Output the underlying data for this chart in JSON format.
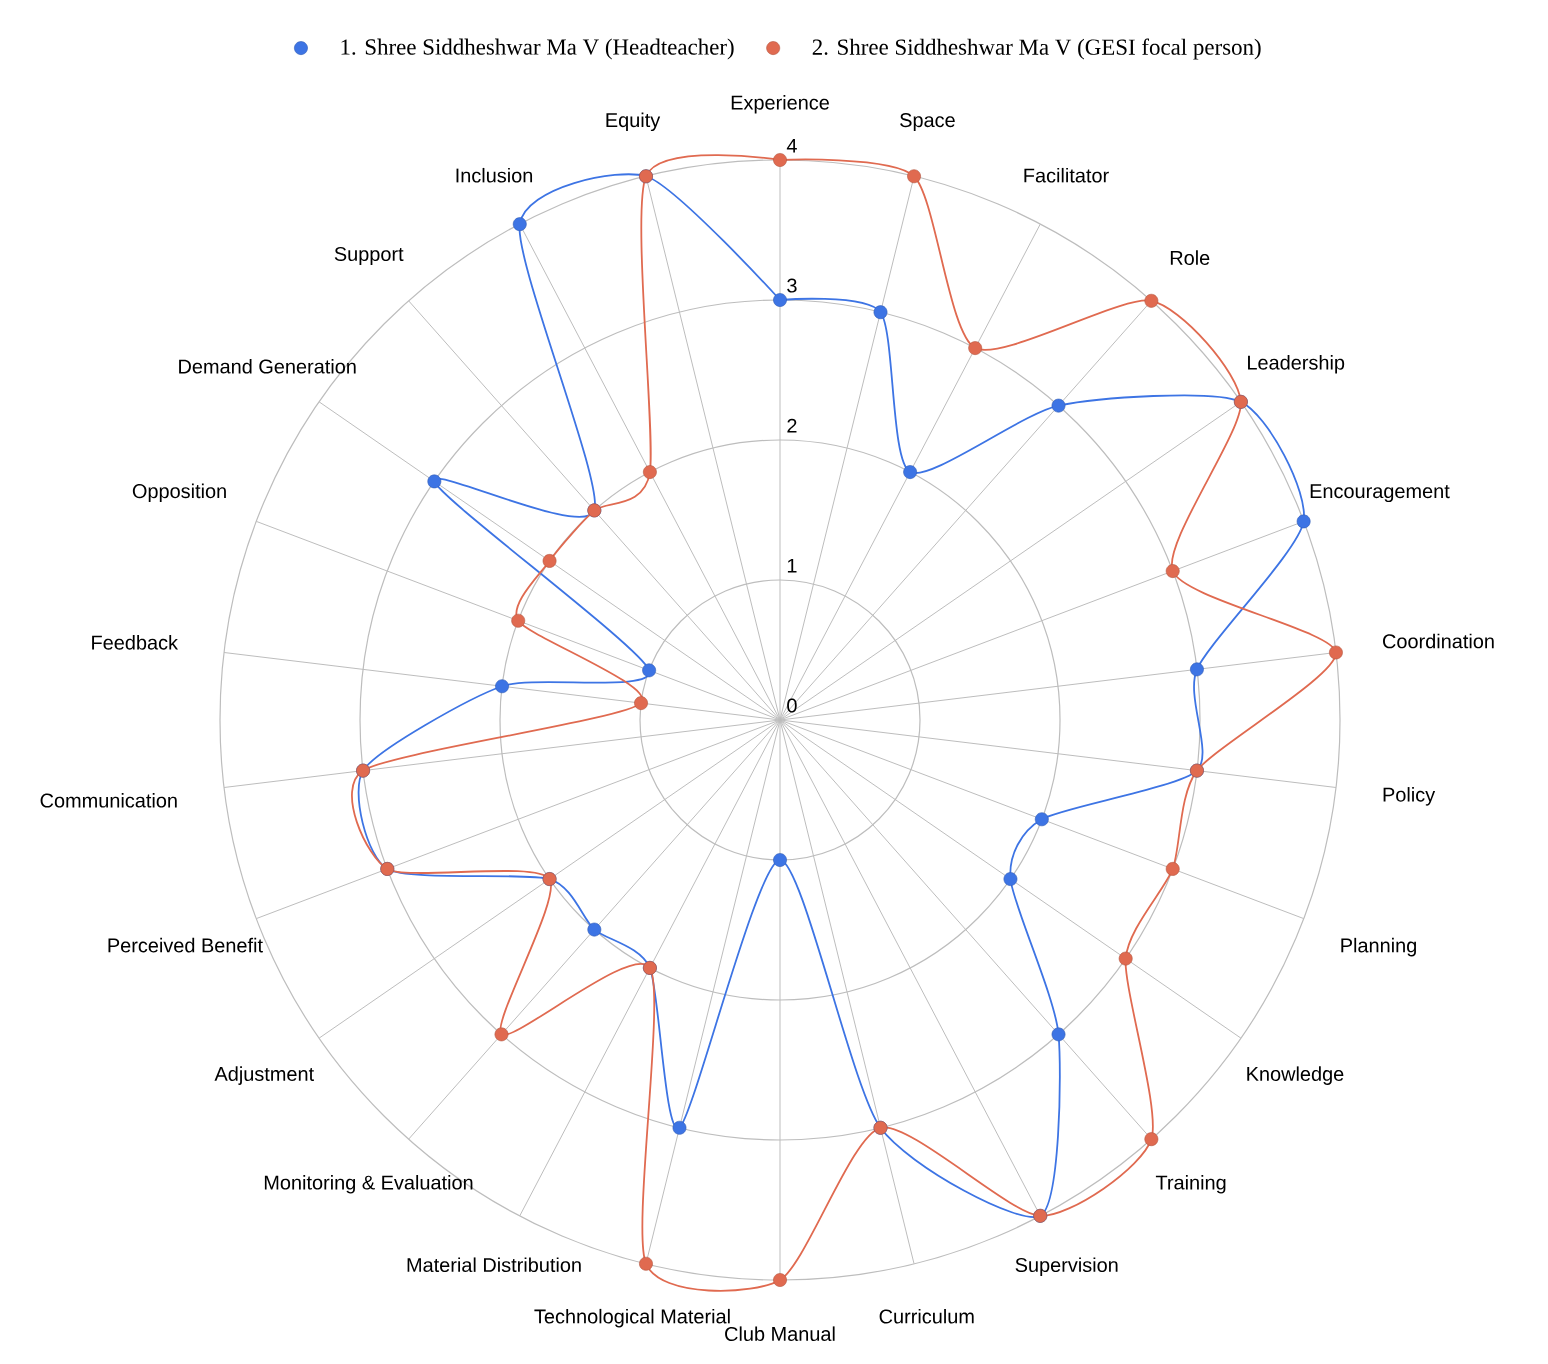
{
  "chart_data": {
    "type": "radar",
    "categories": [
      "Experience",
      "Space",
      "Facilitator",
      "Role",
      "Leadership",
      "Encouragement",
      "Coordination",
      "Policy",
      "Planning",
      "Knowledge",
      "Training",
      "Supervision",
      "Curriculum",
      "Club Manual",
      "Technological Material",
      "Material Distribution",
      "Monitoring & Evaluation",
      "Adjustment",
      "Perceived Benefit",
      "Communication",
      "Feedback",
      "Opposition",
      "Demand Generation",
      "Support",
      "Inclusion",
      "Equity"
    ],
    "series": [
      {
        "name": "1. Shree Siddheshwar Ma V (Headteacher)",
        "color": "#3d74e4",
        "values": [
          3,
          3,
          2,
          3,
          4,
          4,
          3,
          3,
          2,
          2,
          3,
          4,
          3,
          1,
          3,
          2,
          2,
          2,
          3,
          3,
          2,
          1,
          3,
          2,
          4,
          4
        ]
      },
      {
        "name": "2. Shree Siddheshwar Ma V (GESI focal person)",
        "color": "#e06a50",
        "values": [
          4,
          4,
          3,
          4,
          4,
          3,
          4,
          3,
          3,
          3,
          4,
          4,
          3,
          4,
          4,
          2,
          3,
          2,
          3,
          3,
          1,
          2,
          2,
          2,
          2,
          4
        ]
      }
    ],
    "ylim": [
      0,
      4
    ],
    "yticks": [
      0,
      1,
      2,
      3,
      4
    ],
    "grid": true,
    "legend": "top",
    "marker": "circle",
    "line_style": "solid"
  }
}
